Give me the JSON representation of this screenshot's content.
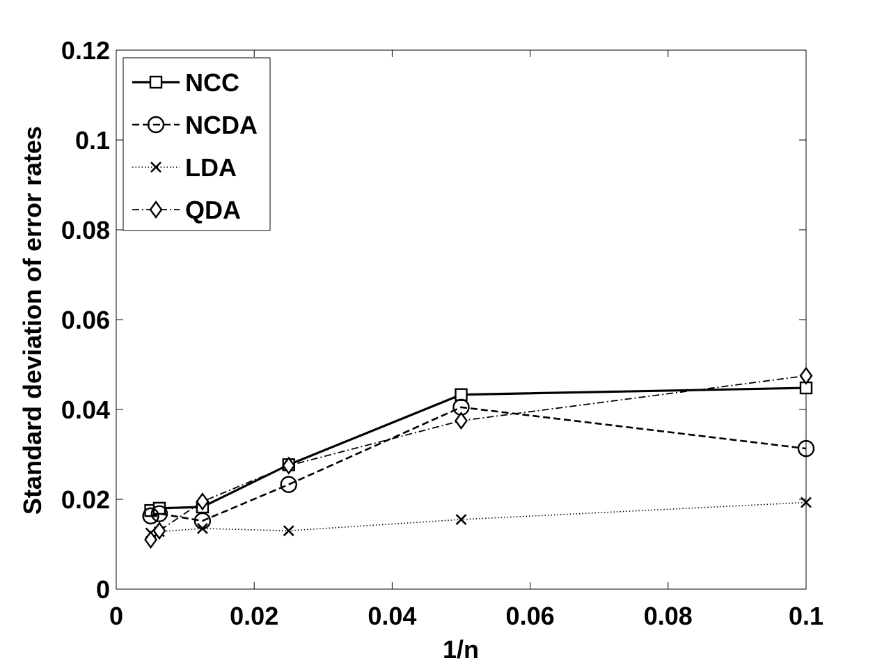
{
  "chart_data": {
    "type": "line",
    "title": "",
    "xlabel": "1/n",
    "ylabel": "Standard deviation of  error rates",
    "xlim": [
      0,
      0.1
    ],
    "ylim": [
      0,
      0.12
    ],
    "x_ticks": [
      0,
      0.02,
      0.04,
      0.06,
      0.08,
      0.1
    ],
    "x_tick_labels": [
      "0",
      "0.02",
      "0.04",
      "0.06",
      "0.08",
      "0.1"
    ],
    "y_ticks": [
      0,
      0.02,
      0.04,
      0.06,
      0.08,
      0.1,
      0.12
    ],
    "y_tick_labels": [
      "0",
      "0.02",
      "0.04",
      "0.06",
      "0.08",
      "0.1",
      "0.12"
    ],
    "grid": false,
    "legend_position": "top-left",
    "x": [
      0.005,
      0.00625,
      0.0125,
      0.025,
      0.05,
      0.1
    ],
    "series": [
      {
        "name": "NCC",
        "marker": "square",
        "line": "solid",
        "values": [
          0.0175,
          0.018,
          0.0183,
          0.0277,
          0.0433,
          0.0448
        ]
      },
      {
        "name": "NCDA",
        "marker": "circle",
        "line": "dashed",
        "values": [
          0.0163,
          0.0168,
          0.0152,
          0.0233,
          0.0405,
          0.0313
        ]
      },
      {
        "name": "LDA",
        "marker": "x",
        "line": "dotted",
        "values": [
          0.0125,
          0.0128,
          0.0135,
          0.013,
          0.0155,
          0.0193
        ]
      },
      {
        "name": "QDA",
        "marker": "diamond",
        "line": "dashdot",
        "values": [
          0.011,
          0.013,
          0.0195,
          0.0275,
          0.0375,
          0.0475
        ]
      }
    ]
  }
}
